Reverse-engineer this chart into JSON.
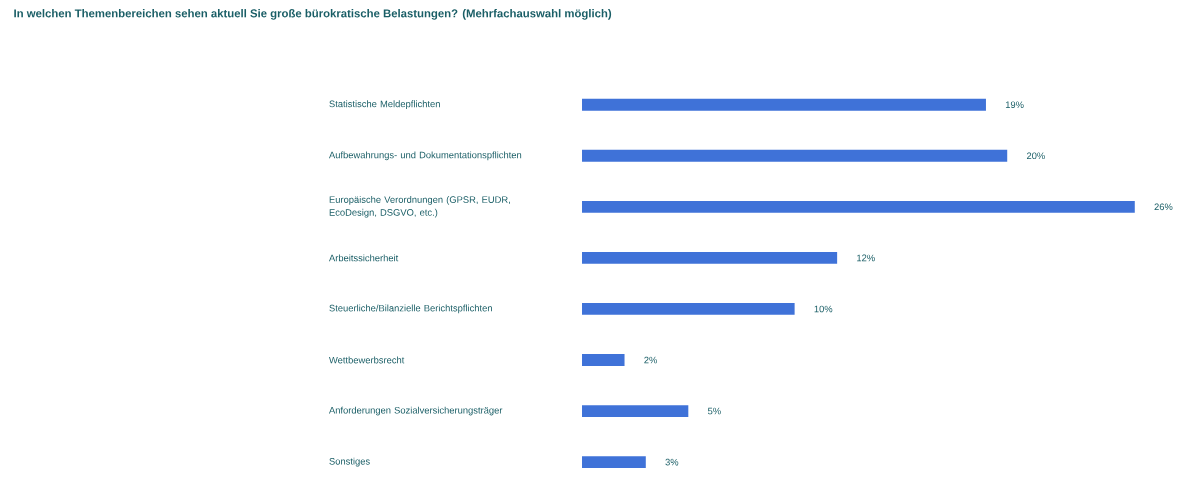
{
  "chart_data": {
    "type": "bar",
    "orientation": "horizontal",
    "title": "In welchen Themenbereichen sehen aktuell Sie große bürokratische Belastungen? (Mehrfachauswahl möglich)",
    "categories": [
      "Statistische Meldepflichten",
      "Aufbewahrungs- und Dokumentationspflichten",
      "Europäische Verordnungen (GPSR, EUDR, EcoDesign, DSGVO, etc.)",
      "Arbeitssicherheit",
      "Steuerliche/Bilanzielle Berichtspflichten",
      "Wettbewerbsrecht",
      "Anforderungen Sozialversicherungsträger",
      "Sonstiges"
    ],
    "values": [
      19,
      20,
      26,
      12,
      10,
      2,
      5,
      3
    ],
    "value_labels": [
      "19%",
      "20%",
      "26%",
      "12%",
      "10%",
      "2%",
      "5%",
      "3%"
    ],
    "color": "#3f72d8"
  }
}
